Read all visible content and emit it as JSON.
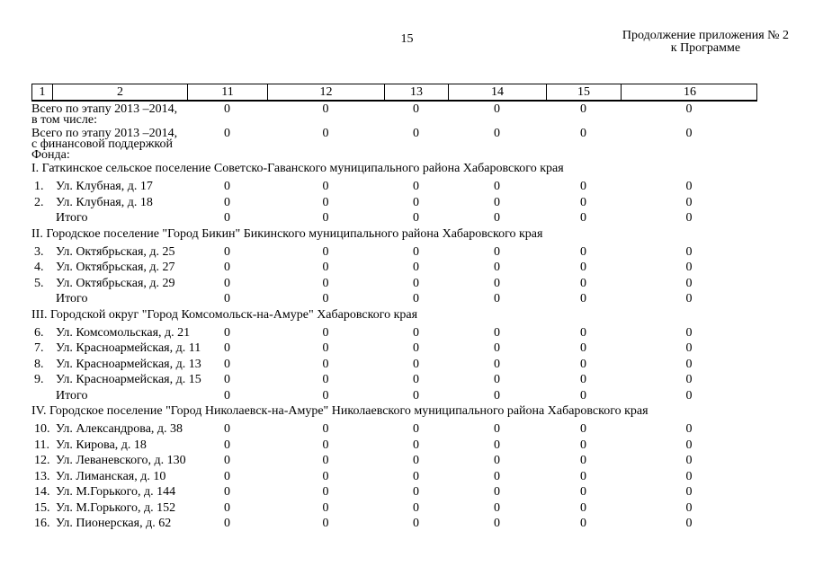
{
  "page": {
    "number": "15",
    "continuation_line1": "Продолжение приложения № 2",
    "continuation_line2": "к Программе"
  },
  "table": {
    "columns": [
      "1",
      "2",
      "11",
      "12",
      "13",
      "14",
      "15",
      "16"
    ],
    "rows": [
      {
        "type": "total",
        "label": "Всего по этапу 2013 –2014, в том числе:",
        "values": [
          "0",
          "0",
          "0",
          "0",
          "0",
          "0"
        ]
      },
      {
        "type": "total",
        "label": "Всего по этапу 2013 –2014, с финансовой поддержкой Фонда:",
        "values": [
          "0",
          "0",
          "0",
          "0",
          "0",
          "0"
        ]
      },
      {
        "type": "section",
        "label": "I. Гаткинское сельское поселение Советско-Гаванского муниципального района Хабаровского края"
      },
      {
        "type": "item",
        "num": "1.",
        "label": "Ул. Клубная, д. 17",
        "values": [
          "0",
          "0",
          "0",
          "0",
          "0",
          "0"
        ]
      },
      {
        "type": "item",
        "num": "2.",
        "label": "Ул. Клубная, д. 18",
        "values": [
          "0",
          "0",
          "0",
          "0",
          "0",
          "0"
        ]
      },
      {
        "type": "subtotal",
        "num": "",
        "label": "Итого",
        "values": [
          "0",
          "0",
          "0",
          "0",
          "0",
          "0"
        ]
      },
      {
        "type": "section",
        "label": "II. Городское поселение \"Город Бикин\" Бикинского муниципального района Хабаровского края"
      },
      {
        "type": "item",
        "num": "3.",
        "label": "Ул. Октябрьская, д. 25",
        "values": [
          "0",
          "0",
          "0",
          "0",
          "0",
          "0"
        ]
      },
      {
        "type": "item",
        "num": "4.",
        "label": "Ул. Октябрьская, д. 27",
        "values": [
          "0",
          "0",
          "0",
          "0",
          "0",
          "0"
        ]
      },
      {
        "type": "item",
        "num": "5.",
        "label": "Ул. Октябрьская, д. 29",
        "values": [
          "0",
          "0",
          "0",
          "0",
          "0",
          "0"
        ]
      },
      {
        "type": "subtotal",
        "num": "",
        "label": "Итого",
        "values": [
          "0",
          "0",
          "0",
          "0",
          "0",
          "0"
        ]
      },
      {
        "type": "section",
        "label": "III. Городской округ \"Город Комсомольск-на-Амуре\" Хабаровского края"
      },
      {
        "type": "item",
        "num": "6.",
        "label": "Ул. Комсомольская, д. 21",
        "values": [
          "0",
          "0",
          "0",
          "0",
          "0",
          "0"
        ]
      },
      {
        "type": "item",
        "num": "7.",
        "label": "Ул. Красноармейская, д. 11",
        "values": [
          "0",
          "0",
          "0",
          "0",
          "0",
          "0"
        ]
      },
      {
        "type": "item",
        "num": "8.",
        "label": "Ул. Красноармейская, д. 13",
        "values": [
          "0",
          "0",
          "0",
          "0",
          "0",
          "0"
        ]
      },
      {
        "type": "item",
        "num": "9.",
        "label": "Ул. Красноармейская, д. 15",
        "values": [
          "0",
          "0",
          "0",
          "0",
          "0",
          "0"
        ]
      },
      {
        "type": "subtotal",
        "num": "",
        "label": "Итого",
        "values": [
          "0",
          "0",
          "0",
          "0",
          "0",
          "0"
        ]
      },
      {
        "type": "section",
        "label": "IV. Городское поселение \"Город Николаевск-на-Амуре\" Николаевского муниципального района Хабаровского края"
      },
      {
        "type": "item",
        "num": "10.",
        "label": "Ул. Александрова, д. 38",
        "values": [
          "0",
          "0",
          "0",
          "0",
          "0",
          "0"
        ]
      },
      {
        "type": "item",
        "num": "11.",
        "label": "Ул. Кирова, д. 18",
        "values": [
          "0",
          "0",
          "0",
          "0",
          "0",
          "0"
        ]
      },
      {
        "type": "item",
        "num": "12.",
        "label": "Ул. Леваневского, д. 130",
        "values": [
          "0",
          "0",
          "0",
          "0",
          "0",
          "0"
        ]
      },
      {
        "type": "item",
        "num": "13.",
        "label": "Ул. Лиманская, д. 10",
        "values": [
          "0",
          "0",
          "0",
          "0",
          "0",
          "0"
        ]
      },
      {
        "type": "item",
        "num": "14.",
        "label": "Ул. М.Горького, д. 144",
        "values": [
          "0",
          "0",
          "0",
          "0",
          "0",
          "0"
        ]
      },
      {
        "type": "item",
        "num": "15.",
        "label": "Ул. М.Горького, д. 152",
        "values": [
          "0",
          "0",
          "0",
          "0",
          "0",
          "0"
        ]
      },
      {
        "type": "item",
        "num": "16.",
        "label": "Ул. Пионерская, д. 62",
        "values": [
          "0",
          "0",
          "0",
          "0",
          "0",
          "0"
        ]
      }
    ]
  }
}
